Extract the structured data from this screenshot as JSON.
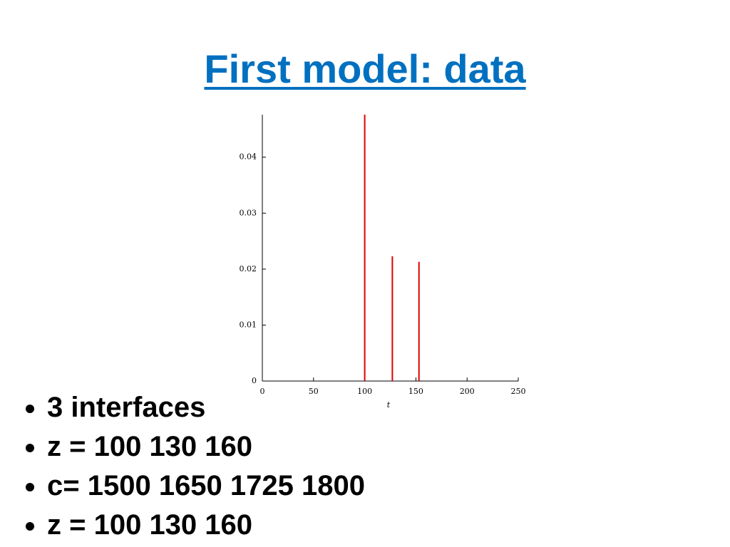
{
  "title": "First model: data",
  "chart_data": {
    "type": "stem",
    "x": [
      100,
      127,
      153
    ],
    "values": [
      0.0476,
      0.0223,
      0.0213
    ],
    "color": "#dd0000",
    "xlim": [
      0,
      250
    ],
    "xticks": [
      0,
      50,
      100,
      150,
      200,
      250
    ],
    "ylim": [
      0,
      0.0476
    ],
    "yticks": [
      0,
      0.01,
      0.02,
      0.03,
      0.04
    ],
    "x_label": "t"
  },
  "bullets": [
    "3 interfaces",
    "z = 100 130 160",
    "c= 1500 1650 1725 1800",
    "z = 100 130 160"
  ]
}
